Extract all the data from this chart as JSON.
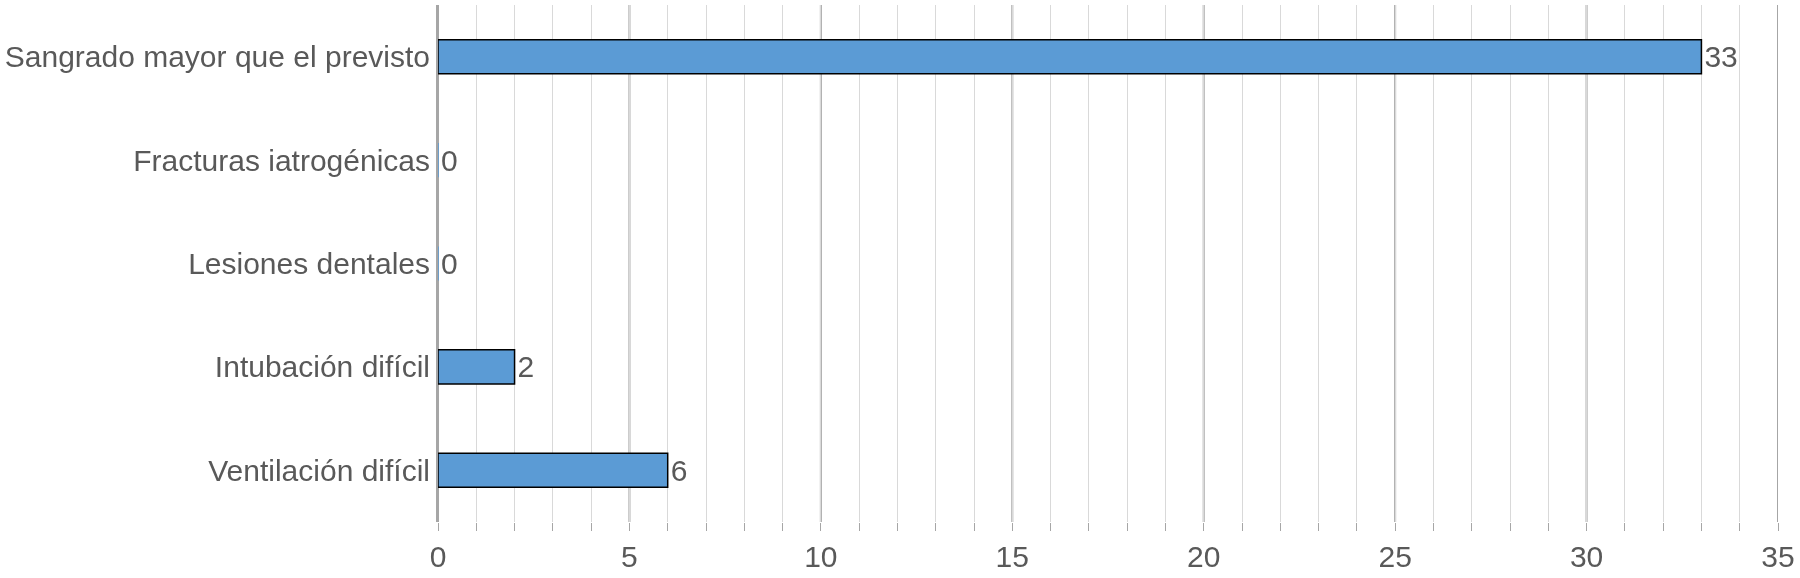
{
  "chart_data": {
    "type": "bar",
    "orientation": "horizontal",
    "categories": [
      "Sangrado mayor que el previsto",
      "Fracturas iatrogénicas",
      "Lesiones dentales",
      "Intubación difícil",
      "Ventilación difícil"
    ],
    "values": [
      33,
      0,
      0,
      2,
      6
    ],
    "color": "#5b9bd5",
    "data_labels": true,
    "grid": "x",
    "legend": false,
    "xlim": [
      0,
      35
    ],
    "xticks": [
      0,
      {
        "value": 1,
        "label": null
      },
      {
        "value": 2,
        "label": null
      },
      {
        "value": 3,
        "label": null
      },
      {
        "value": 4,
        "label": null
      },
      5,
      {
        "value": 6,
        "label": null
      },
      {
        "value": 7,
        "label": null
      },
      {
        "value": 8,
        "label": null
      },
      {
        "value": 9,
        "label": null
      },
      10,
      {
        "value": 11,
        "label": null
      },
      {
        "value": 12,
        "label": null
      },
      {
        "value": 13,
        "label": null
      },
      {
        "value": 14,
        "label": null
      },
      15,
      {
        "value": 16,
        "label": null
      },
      {
        "value": 17,
        "label": null
      },
      {
        "value": 18,
        "label": null
      },
      {
        "value": 19,
        "label": null
      },
      20,
      {
        "value": 21,
        "label": null
      },
      {
        "value": 22,
        "label": null
      },
      {
        "value": 23,
        "label": null
      },
      {
        "value": 24,
        "label": null
      },
      25,
      {
        "value": 26,
        "label": null
      },
      {
        "value": 27,
        "label": null
      },
      {
        "value": 28,
        "label": null
      },
      {
        "value": 29,
        "label": null
      },
      30,
      {
        "value": 31,
        "label": null
      },
      {
        "value": 32,
        "label": null
      },
      {
        "value": 33,
        "label": null
      },
      {
        "value": 34,
        "label": null
      },
      35
    ]
  }
}
